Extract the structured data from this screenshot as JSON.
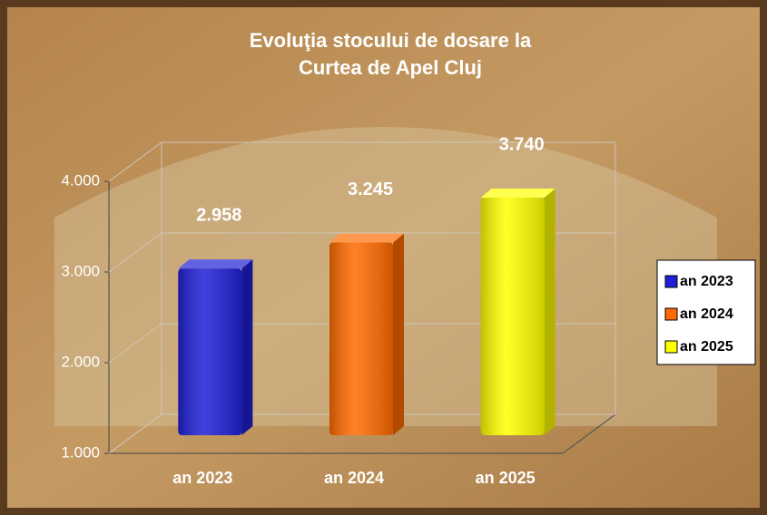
{
  "chart_data": {
    "type": "bar3d",
    "title": [
      "Evoluţia stocului de dosare la",
      "Curtea de Apel Cluj"
    ],
    "categories": [
      "an 2023",
      "an 2024",
      "an 2025"
    ],
    "values": [
      2958,
      3245,
      3740
    ],
    "value_labels": [
      "2.958",
      "3.245",
      "3.740"
    ],
    "colors": [
      "#1f1fd6",
      "#ff6a00",
      "#ffff00"
    ],
    "ylim": [
      1000,
      4000
    ],
    "yticks": [
      {
        "value": 1000,
        "label": "1.000"
      },
      {
        "value": 2000,
        "label": "2.000"
      },
      {
        "value": 3000,
        "label": "3.000"
      },
      {
        "value": 4000,
        "label": "4.000"
      }
    ],
    "grid": true,
    "legend": "right"
  }
}
